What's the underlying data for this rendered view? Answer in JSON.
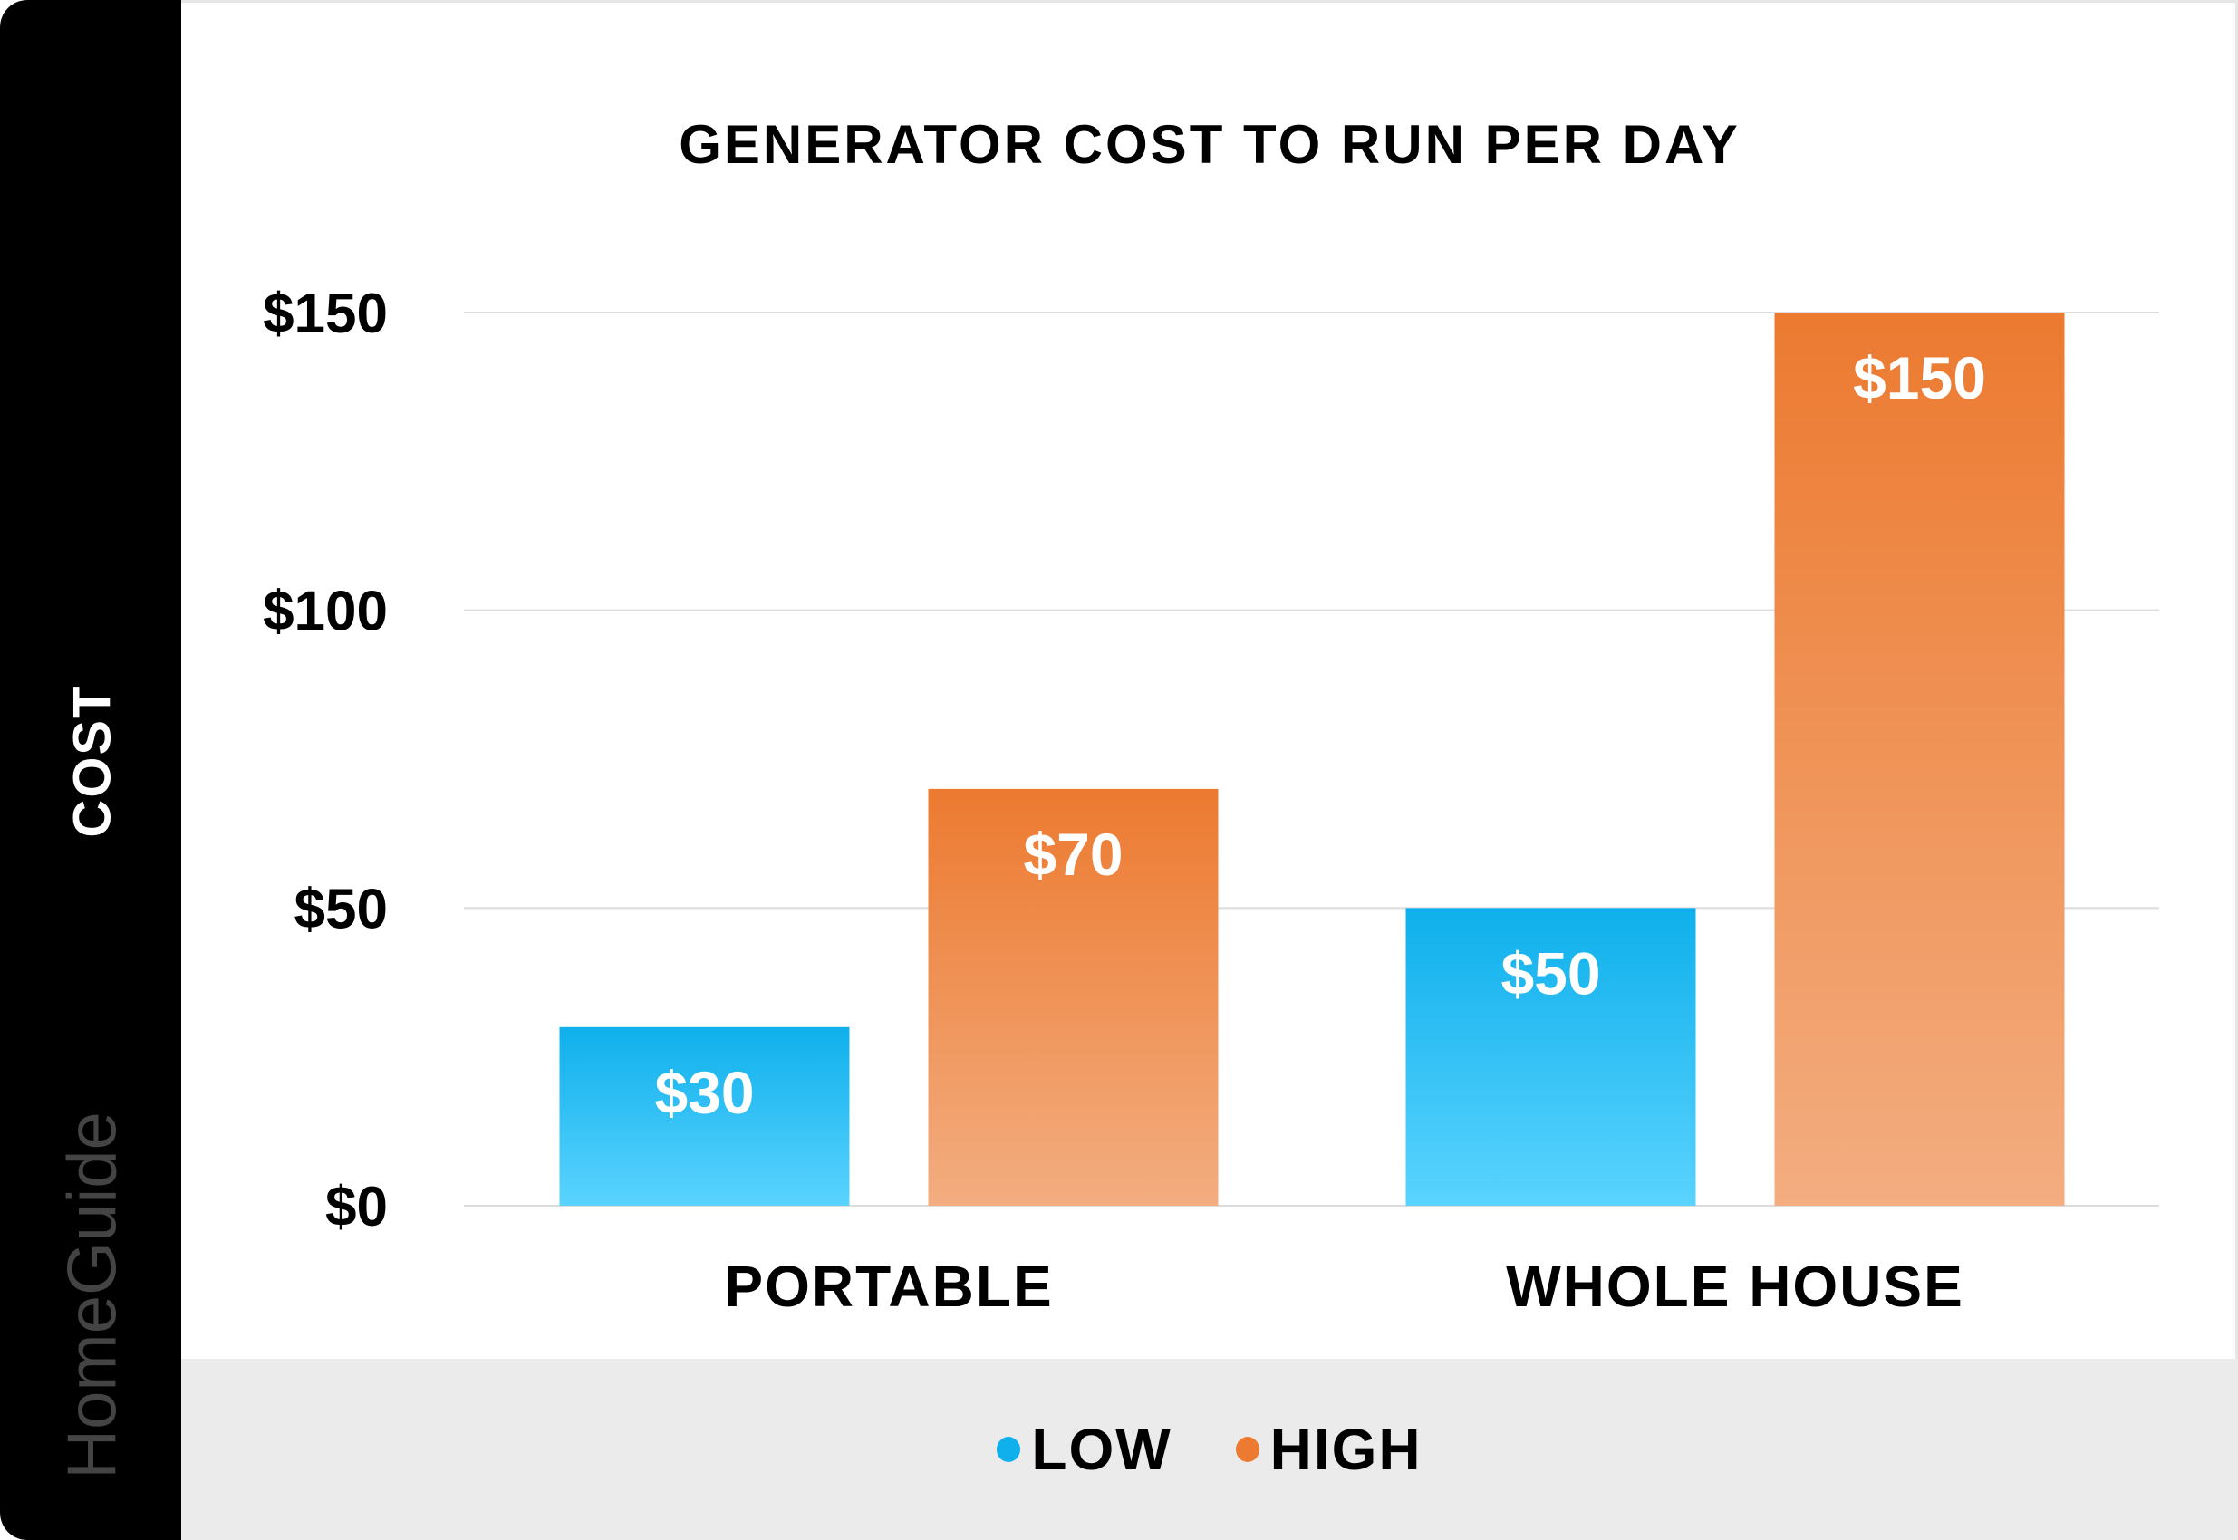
{
  "chart_data": {
    "type": "bar",
    "title": "GENERATOR COST TO RUN PER DAY",
    "ylabel": "COST",
    "xlabel": "",
    "categories": [
      "PORTABLE",
      "WHOLE HOUSE"
    ],
    "series": [
      {
        "name": "LOW",
        "values": [
          30,
          50
        ],
        "labels": [
          "$30",
          "$50"
        ],
        "color": "#0fb0ec",
        "color_light": "#5ad3fe"
      },
      {
        "name": "HIGH",
        "values": [
          70,
          150
        ],
        "labels": [
          "$70",
          "$150"
        ],
        "color": "#ec7a30",
        "color_light": "#f3ad80"
      }
    ],
    "ylim": [
      0,
      150
    ],
    "yticks": [
      0,
      50,
      100,
      150
    ],
    "ytick_labels": [
      "$0",
      "$50",
      "$100",
      "$150"
    ],
    "grid": true,
    "legend_position": "bottom"
  },
  "brand": {
    "logo_text": "HomeGuide"
  }
}
